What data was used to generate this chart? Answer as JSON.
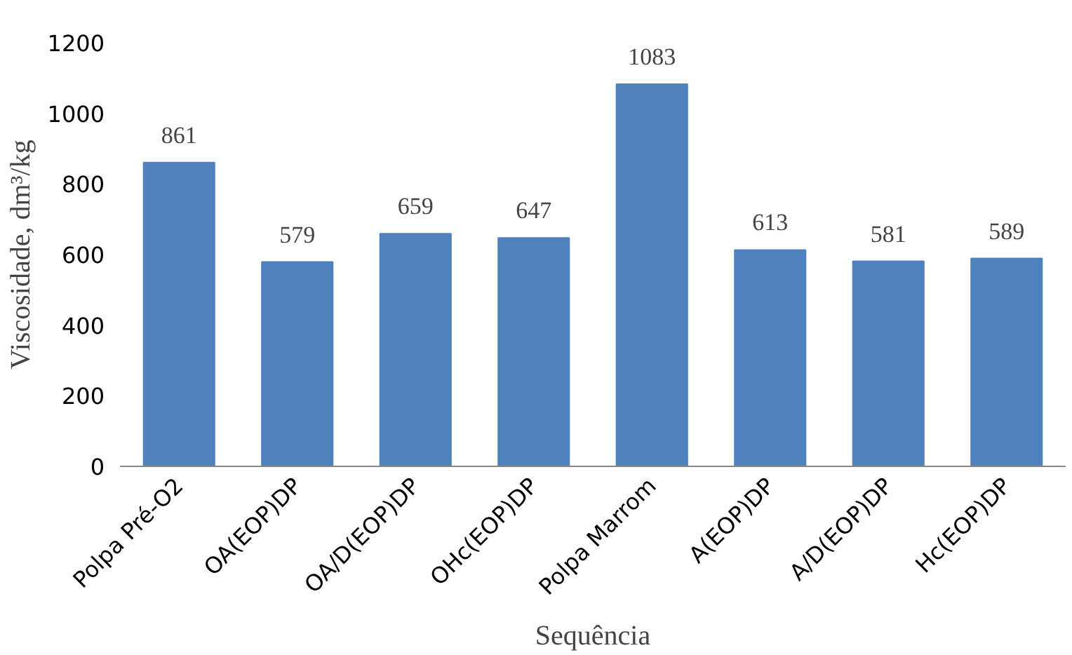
{
  "chart_data": {
    "type": "bar",
    "xlabel": "Sequência",
    "ylabel": "Viscosidade, dm³/kg",
    "categories": [
      "Polpa Pré-O2",
      "OA(EOP)DP",
      "OA/D(EOP)DP",
      "OHc(EOP)DP",
      "Polpa Marrom",
      "A(EOP)DP",
      "A/D(EOP)DP",
      "Hc(EOP)DP"
    ],
    "values": [
      861,
      579,
      659,
      647,
      1083,
      613,
      581,
      589
    ],
    "color": "#4f81bd",
    "ylim": [
      0,
      1200
    ],
    "yticks": [
      0,
      200,
      400,
      600,
      800,
      1000,
      1200
    ],
    "grid": false,
    "data_labels": true
  }
}
